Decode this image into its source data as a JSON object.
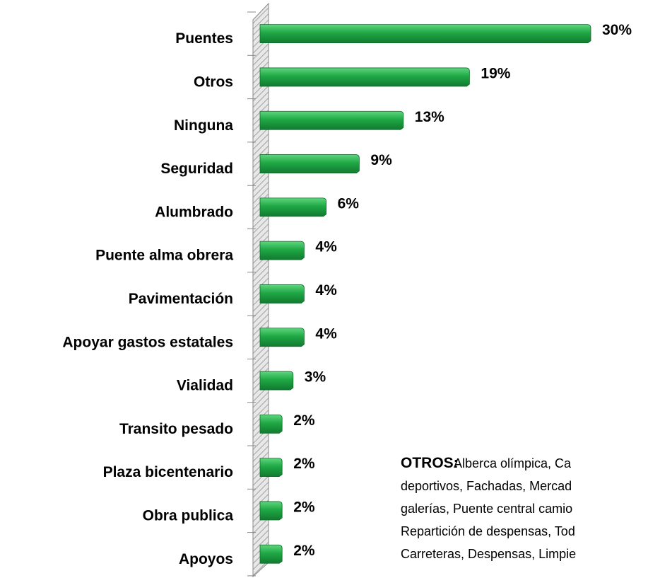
{
  "chart_data": {
    "type": "barh",
    "categories": [
      "Puentes",
      "Otros",
      "Ninguna",
      "Seguridad",
      "Alumbrado",
      "Puente alma obrera",
      "Pavimentación",
      "Apoyar gastos estatales",
      "Vialidad",
      "Transito pesado",
      "Plaza bicentenario",
      "Obra publica",
      "Apoyos"
    ],
    "values": [
      30,
      19,
      13,
      9,
      6,
      4,
      4,
      4,
      3,
      2,
      2,
      2,
      2
    ],
    "value_labels": [
      "30%",
      "19%",
      "13%",
      "9%",
      "6%",
      "4%",
      "4%",
      "4%",
      "3%",
      "2%",
      "2%",
      "2%",
      "2%"
    ],
    "color": "#1fa845",
    "note": {
      "heading": "OTROS:",
      "lines": [
        "Alberca olímpica, Ca",
        "deportivos, Fachadas, Mercad",
        "galerías, Puente central camio",
        "Repartición de despensas, Tod",
        "Carreteras, Despensas, Limpie"
      ]
    }
  }
}
